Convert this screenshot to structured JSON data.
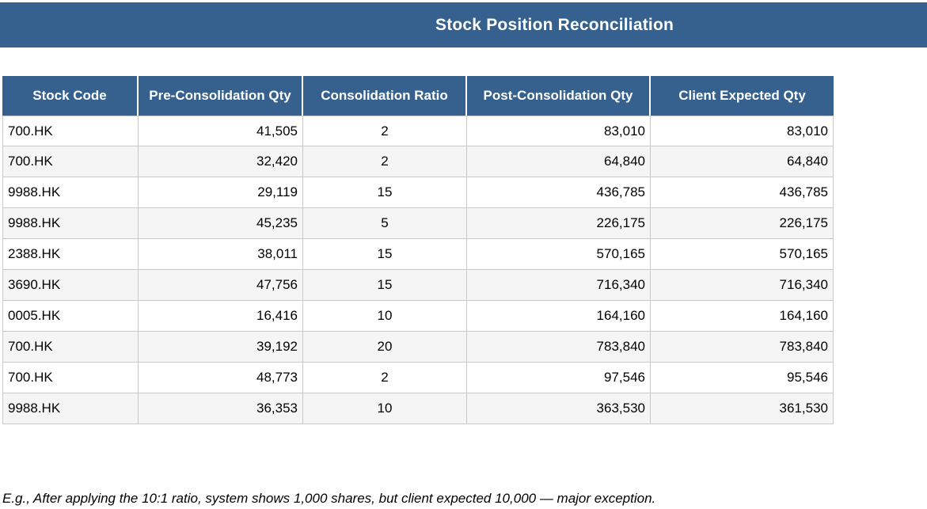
{
  "header": {
    "title": "Stock Position Reconciliation"
  },
  "table": {
    "columns": [
      "Stock Code",
      "Pre-Consolidation Qty",
      "Consolidation Ratio",
      "Post-Consolidation Qty",
      "Client Expected Qty"
    ],
    "rows": [
      [
        "700.HK",
        "41,505",
        "2",
        "83,010",
        "83,010"
      ],
      [
        "700.HK",
        "32,420",
        "2",
        "64,840",
        "64,840"
      ],
      [
        "9988.HK",
        "29,119",
        "15",
        "436,785",
        "436,785"
      ],
      [
        "9988.HK",
        "45,235",
        "5",
        "226,175",
        "226,175"
      ],
      [
        "2388.HK",
        "38,011",
        "15",
        "570,165",
        "570,165"
      ],
      [
        "3690.HK",
        "47,756",
        "15",
        "716,340",
        "716,340"
      ],
      [
        "0005.HK",
        "16,416",
        "10",
        "164,160",
        "164,160"
      ],
      [
        "700.HK",
        "39,192",
        "20",
        "783,840",
        "783,840"
      ],
      [
        "700.HK",
        "48,773",
        "2",
        "97,546",
        "95,546"
      ],
      [
        "9988.HK",
        "36,353",
        "10",
        "363,530",
        "361,530"
      ]
    ]
  },
  "footnote": {
    "text": "E.g., After applying the 10:1 ratio, system shows 1,000 shares, but client expected 10,000 — major exception."
  },
  "colors": {
    "banner": "#36618f",
    "grid": "#c9c9c9",
    "row_alt": "#f5f5f5",
    "header_text": "#ffffff"
  }
}
